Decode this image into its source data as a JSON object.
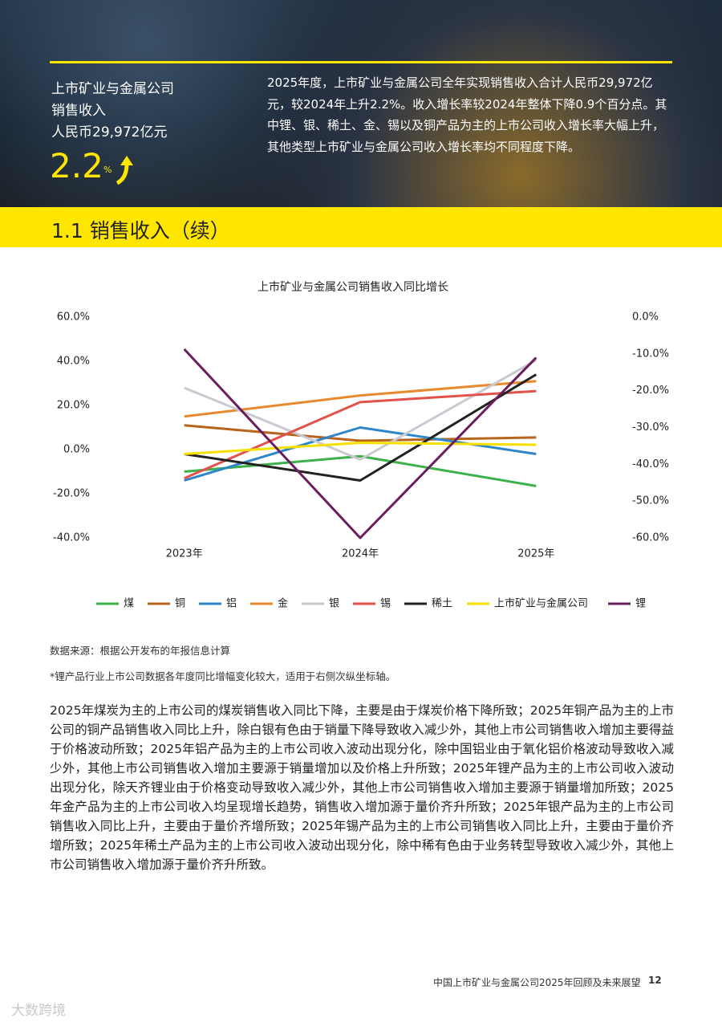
{
  "header": {
    "label_lines": [
      "上市矿业与金属公司",
      "销售收入",
      "人民币29,972亿元"
    ],
    "growth": "2.2",
    "growth_unit": "%",
    "summary": "2025年度，上市矿业与金属公司全年实现销售收入合计人民币29,972亿元，较2024年上升2.2%。收入增长率较2024年整体下降0.9个百分点。其中锂、银、稀土、金、锡以及铜产品为主的上市公司收入增长率大幅上升，其他类型上市矿业与金属公司收入增长率均不同程度下降。"
  },
  "section_title": "1.1 销售收入（续）",
  "chart_data": {
    "type": "line",
    "title": "上市矿业与金属公司销售收入同比增长",
    "categories": [
      "2023年",
      "2024年",
      "2025年"
    ],
    "series": [
      {
        "name": "煤",
        "color": "#3cb04a",
        "values": [
          -10,
          -3,
          -16.5
        ]
      },
      {
        "name": "铜",
        "color": "#b8651b",
        "values": [
          11,
          4,
          5.5
        ]
      },
      {
        "name": "铝",
        "color": "#2e86c9",
        "values": [
          -14,
          10,
          -2
        ]
      },
      {
        "name": "金",
        "color": "#e8892e",
        "values": [
          15,
          24.5,
          31
        ]
      },
      {
        "name": "银",
        "color": "#c9c9d1",
        "values": [
          28,
          -4.5,
          40.5
        ]
      },
      {
        "name": "锡",
        "color": "#e0524a",
        "values": [
          -13,
          21.5,
          26.5
        ]
      },
      {
        "name": "稀土",
        "color": "#222222",
        "values": [
          -2,
          -14,
          34
        ]
      },
      {
        "name": "上市矿业与金属公司",
        "color": "#f5e000",
        "values": [
          -2,
          3.1,
          2.2
        ]
      },
      {
        "name": "锂",
        "color": "#6b1e5e",
        "axis": "y2",
        "values": [
          -8.7,
          -60,
          -11
        ]
      }
    ],
    "ylim": [
      -40,
      60
    ],
    "yticks": [
      {
        "value": -40,
        "label": "-40.0%"
      },
      {
        "value": -20,
        "label": "-20.0%"
      },
      {
        "value": 0,
        "label": "0.0%"
      },
      {
        "value": 20,
        "label": "20.0%"
      },
      {
        "value": 40,
        "label": "40.0%"
      },
      {
        "value": 60,
        "label": "60.0%"
      }
    ],
    "y2lim": [
      -60,
      0
    ],
    "y2ticks": [
      {
        "value": -60,
        "label": "-60.0%"
      },
      {
        "value": -50,
        "label": "-50.0%"
      },
      {
        "value": -40,
        "label": "-40.0%"
      },
      {
        "value": -30,
        "label": "-30.0%"
      },
      {
        "value": -20,
        "label": "-20.0%"
      },
      {
        "value": -10,
        "label": "-10.0%"
      },
      {
        "value": 0,
        "label": "0.0%"
      }
    ],
    "grid": false,
    "legend": "bottom"
  },
  "source_note": "数据来源：根据公开发布的年报信息计算",
  "footnote": "*锂产品行业上市公司数据各年度同比增幅变化较大，适用于右侧次纵坐标轴。",
  "body": "2025年煤炭为主的上市公司的煤炭销售收入同比下降，主要是由于煤炭价格下降所致；2025年铜产品为主的上市公司的铜产品销售收入同比上升，除白银有色由于销量下降导致收入减少外，其他上市公司销售收入增加主要得益于价格波动所致；2025年铝产品为主的上市公司收入波动出现分化，除中国铝业由于氧化铝价格波动导致收入减少外，其他上市公司销售收入增加主要源于销量增加以及价格上升所致；2025年锂产品为主的上市公司收入波动出现分化，除天齐锂业由于价格变动导致收入减少外，其他上市公司销售收入增加主要源于销量增加所致；2025年金产品为主的上市公司收入均呈现增长趋势，销售收入增加源于量价齐升所致；2025年银产品为主的上市公司销售收入同比上升，主要由于量价齐增所致；2025年锡产品为主的上市公司销售收入同比上升，主要由于量价齐增所致；2025年稀土产品为主的上市公司收入波动出现分化，除中稀有色由于业务转型导致收入减少外，其他上市公司销售收入增加源于量价齐升所致。",
  "footer": {
    "text": "中国上市矿业与金属公司2025年回顾及未来展望",
    "page": "12"
  },
  "watermark": "大数跨境"
}
